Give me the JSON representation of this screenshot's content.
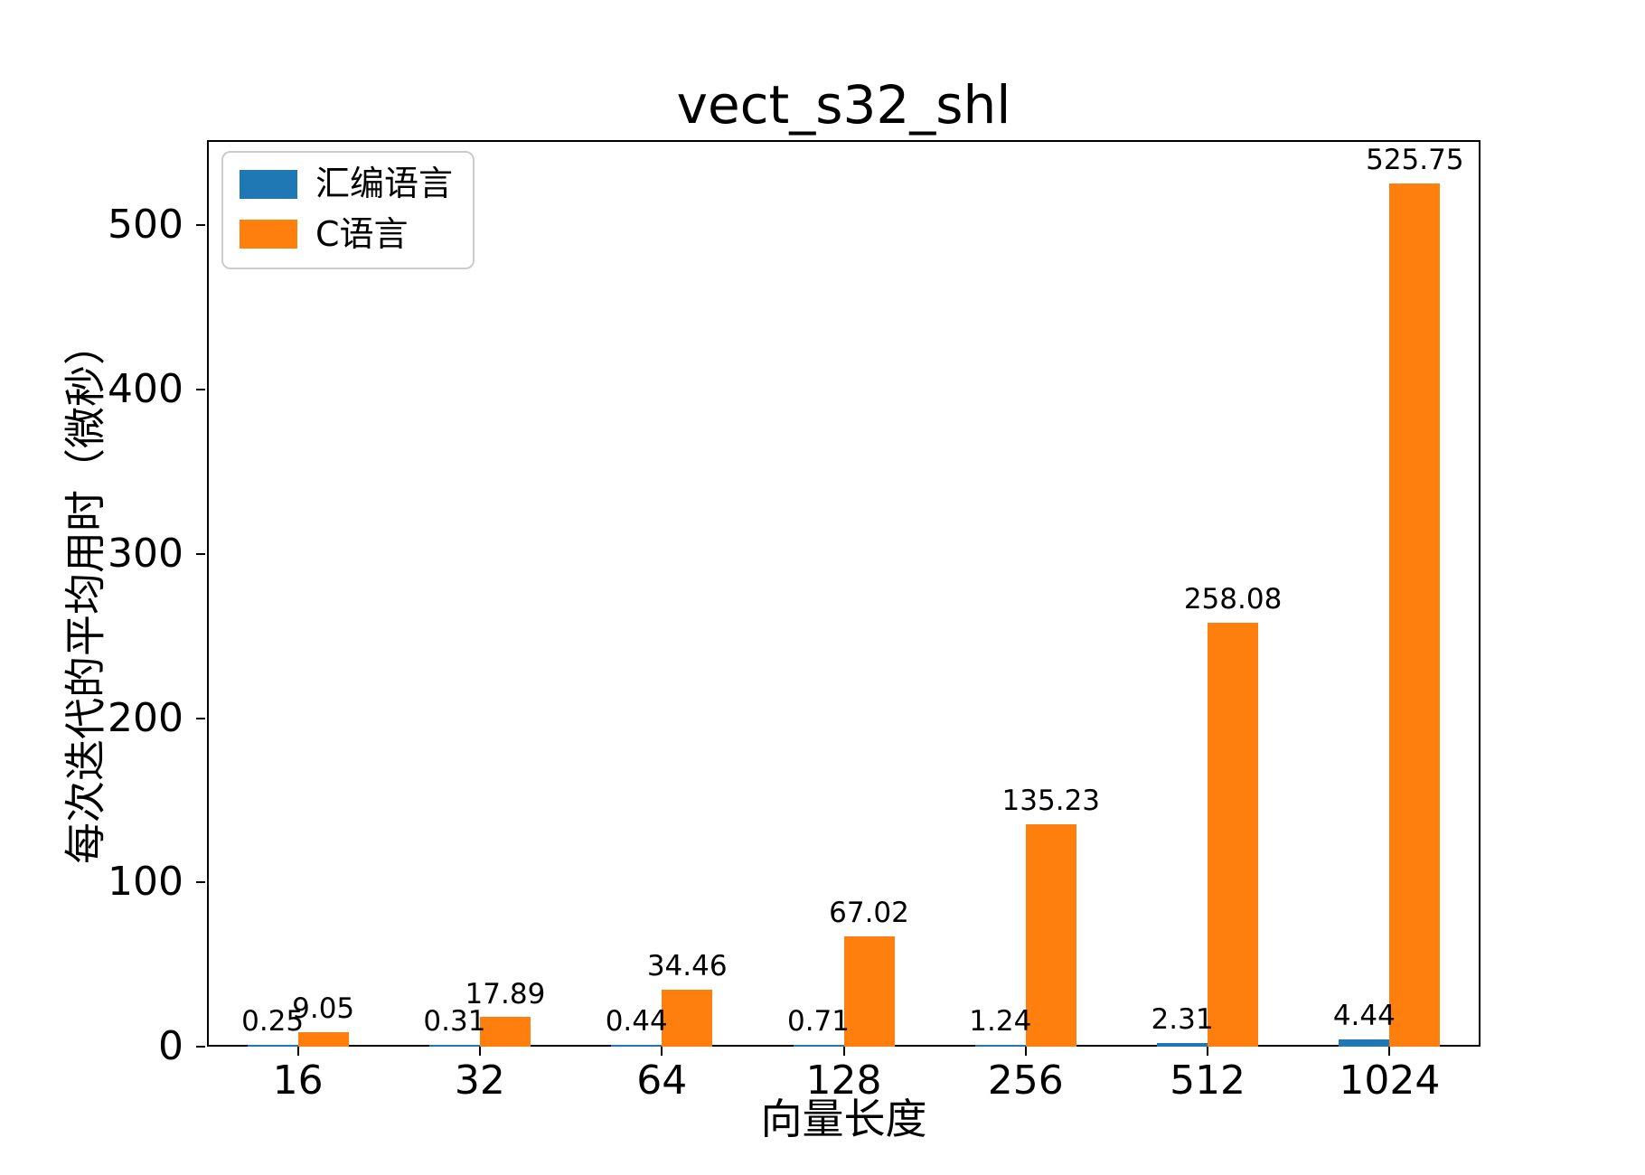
{
  "figure": {
    "background": "#ffffff"
  },
  "chart_data": {
    "type": "bar",
    "title": "vect_s32_shl",
    "xlabel": "向量长度",
    "ylabel": "每次迭代的平均用时（微秒）",
    "categories": [
      "16",
      "32",
      "64",
      "128",
      "256",
      "512",
      "1024"
    ],
    "series": [
      {
        "name": "汇编语言",
        "color": "#1f77b4",
        "values": [
          0.25,
          0.31,
          0.44,
          0.71,
          1.24,
          2.31,
          4.44
        ],
        "labels": [
          "0.25",
          "0.31",
          "0.44",
          "0.71",
          "1.24",
          "2.31",
          "4.44"
        ]
      },
      {
        "name": "C语言",
        "color": "#ff7f0e",
        "values": [
          9.05,
          17.89,
          34.46,
          67.02,
          135.23,
          258.08,
          525.75
        ],
        "labels": [
          "9.05",
          "17.89",
          "34.46",
          "67.02",
          "135.23",
          "258.08",
          "525.75"
        ]
      }
    ],
    "ylim": [
      0,
      552
    ],
    "yticks": [
      0,
      100,
      200,
      300,
      400,
      500
    ],
    "grid": false,
    "legend_position": "upper left",
    "bar_value_labels": true,
    "axis_color": "#000000",
    "text_color": "#000000"
  }
}
